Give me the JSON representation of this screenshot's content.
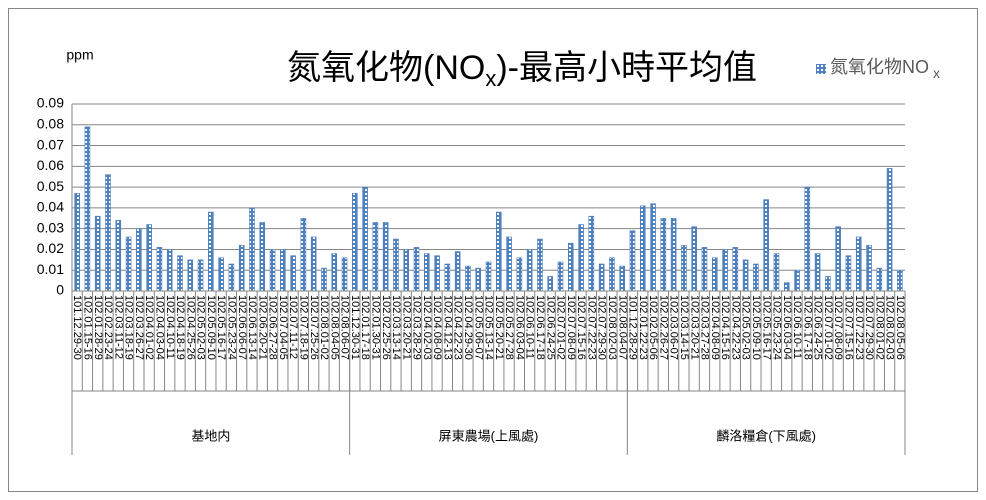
{
  "chart_data": {
    "type": "bar",
    "title": [
      "氮氧化物(NO",
      "x",
      ")-最高小時平均值"
    ],
    "y_label": "ppm",
    "legend_name": [
      "氮氧化物NO",
      "x"
    ],
    "color": "#4f81bd",
    "ylim": [
      0,
      0.09
    ],
    "yticks": [
      0,
      0.01,
      0.02,
      0.03,
      0.04,
      0.05,
      0.06,
      0.07,
      0.08,
      0.09
    ],
    "grid": true,
    "groups": [
      {
        "name": "基地内",
        "categories": [
          "101.12.29-30",
          "102.01.15-16",
          "102.01.28-29",
          "102.02.23-24",
          "102.03.11-12",
          "102.03.18-19",
          "102.03.26-27",
          "102.04.01-02",
          "102.04.03-04",
          "102.04.10-11",
          "102.04.18-19",
          "102.04.25-26",
          "102.05.02-03",
          "102.05.09-10",
          "102.05.16-17",
          "102.05.23-24",
          "102.06.06-07",
          "102.06.13-14",
          "102.06.20-21",
          "102.06.27-28",
          "102.07.04-05",
          "102.07.11-12",
          "102.07.18-19",
          "102.07.25-26",
          "102.08.01-02",
          "102.08.04-05",
          "102.08.06-07"
        ],
        "values": [
          0.047,
          0.079,
          0.036,
          0.056,
          0.034,
          0.026,
          0.03,
          0.032,
          0.021,
          0.02,
          0.017,
          0.015,
          0.015,
          0.038,
          0.016,
          0.013,
          0.022,
          0.04,
          0.033,
          0.02,
          0.02,
          0.017,
          0.035,
          0.026,
          0.011,
          0.018,
          0.016
        ]
      },
      {
        "name": "屏東農場(上風處)",
        "categories": [
          "101.12.30-31",
          "102.01.17-18",
          "102.01.30-31",
          "102.02.25-26",
          "102.03.13-14",
          "102.03.20-21",
          "102.03.28-29",
          "102.04.02-03",
          "102.04.08-09",
          "102.04.12-13",
          "102.04.22-23",
          "102.04.29-30",
          "102.05.06-07",
          "102.05.13-14",
          "102.05.20-21",
          "102.05.27-28",
          "102.06.03-04",
          "102.06.10-11",
          "102.06.17-18",
          "102.06.24-25",
          "102.07.01-02",
          "102.07.08-09",
          "102.07.15-16",
          "102.07.22-23",
          "102.07.29-30",
          "102.08.02-03",
          "102.08.04-07"
        ],
        "values": [
          0.047,
          0.05,
          0.033,
          0.033,
          0.025,
          0.02,
          0.021,
          0.018,
          0.017,
          0.013,
          0.019,
          0.012,
          0.011,
          0.014,
          0.038,
          0.026,
          0.016,
          0.02,
          0.025,
          0.007,
          0.014,
          0.023,
          0.032,
          0.036,
          0.013,
          0.016,
          0.012
        ]
      },
      {
        "name": "麟洛糧倉(下風處)",
        "categories": [
          "101.12.28-29",
          "102.01.22-23",
          "102.02.05-06",
          "102.02.26-27",
          "102.03.06-07",
          "102.03.14-15",
          "102.03.20-21",
          "102.03.27-28",
          "102.04.08-09",
          "102.04.15-16",
          "102.04.22-23",
          "102.05.02-03",
          "102.05.09-10",
          "102.05.16-17",
          "102.05.23-24",
          "102.06.03-04",
          "102.06.10-11",
          "102.06.17-18",
          "102.06.24-25",
          "102.07.01-02",
          "102.07.08-09",
          "102.07.15-16",
          "102.07.22-23",
          "102.07.29-30",
          "102.08.01-02",
          "102.08.02-03",
          "102.08.05-06"
        ],
        "values": [
          0.029,
          0.041,
          0.042,
          0.035,
          0.035,
          0.022,
          0.031,
          0.021,
          0.016,
          0.02,
          0.021,
          0.015,
          0.013,
          0.044,
          0.018,
          0.004,
          0.01,
          0.05,
          0.018,
          0.007,
          0.031,
          0.017,
          0.026,
          0.022,
          0.011,
          0.059,
          0.01
        ]
      }
    ]
  }
}
